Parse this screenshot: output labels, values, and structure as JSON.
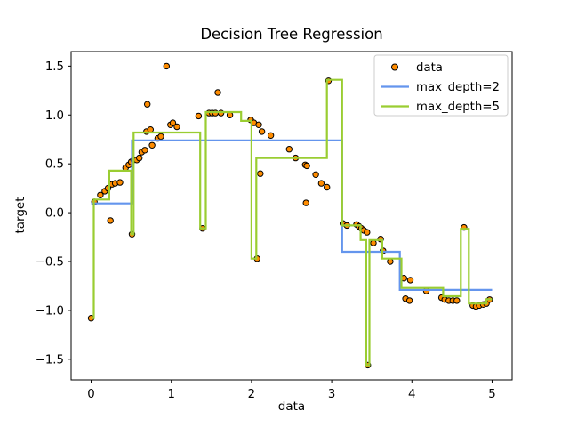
{
  "figure": {
    "background": "#ffffff",
    "axes_edge_color": "#000000"
  },
  "chart_data": {
    "type": "scatter+step",
    "title": "Decision Tree Regression",
    "xlabel": "data",
    "ylabel": "target",
    "xlim": [
      -0.25,
      5.25
    ],
    "ylim": [
      -1.711,
      1.649
    ],
    "xticks": [
      0,
      1,
      2,
      3,
      4,
      5
    ],
    "yticks": [
      -1.5,
      -1.0,
      -0.5,
      0.0,
      0.5,
      1.0,
      1.5
    ],
    "grid": false,
    "legend": {
      "position": "upper right",
      "entries": [
        {
          "label": "data",
          "type": "marker",
          "color": "#ff8c00",
          "edge": "#000000"
        },
        {
          "label": "max_depth=2",
          "type": "line",
          "color": "#6495ed"
        },
        {
          "label": "max_depth=5",
          "type": "line",
          "color": "#9acd32"
        }
      ]
    },
    "series": [
      {
        "name": "data",
        "type": "scatter",
        "color": "#ff8c00",
        "edgecolor": "#000000",
        "marker_radius": 3.2,
        "points": [
          [
            0.0,
            -1.08
          ],
          [
            0.04,
            0.11
          ],
          [
            0.115,
            0.18
          ],
          [
            0.17,
            0.22
          ],
          [
            0.21,
            0.25
          ],
          [
            0.24,
            -0.08
          ],
          [
            0.26,
            0.29
          ],
          [
            0.3,
            0.3
          ],
          [
            0.36,
            0.31
          ],
          [
            0.43,
            0.46
          ],
          [
            0.47,
            0.49
          ],
          [
            0.5,
            0.52
          ],
          [
            0.51,
            -0.22
          ],
          [
            0.53,
            0.54
          ],
          [
            0.57,
            0.54
          ],
          [
            0.6,
            0.56
          ],
          [
            0.63,
            0.62
          ],
          [
            0.67,
            0.64
          ],
          [
            0.69,
            0.83
          ],
          [
            0.7,
            1.11
          ],
          [
            0.74,
            0.85
          ],
          [
            0.76,
            0.69
          ],
          [
            0.83,
            0.76
          ],
          [
            0.87,
            0.78
          ],
          [
            0.94,
            1.5
          ],
          [
            0.99,
            0.9
          ],
          [
            1.02,
            0.92
          ],
          [
            1.07,
            0.88
          ],
          [
            1.34,
            0.99
          ],
          [
            1.39,
            -0.16
          ],
          [
            1.47,
            1.02
          ],
          [
            1.51,
            1.02
          ],
          [
            1.55,
            1.02
          ],
          [
            1.58,
            1.23
          ],
          [
            1.62,
            1.02
          ],
          [
            1.73,
            1.0
          ],
          [
            1.99,
            0.95
          ],
          [
            2.03,
            0.92
          ],
          [
            2.07,
            -0.47
          ],
          [
            2.09,
            0.9
          ],
          [
            2.11,
            0.4
          ],
          [
            2.13,
            0.83
          ],
          [
            2.24,
            0.79
          ],
          [
            2.47,
            0.65
          ],
          [
            2.55,
            0.56
          ],
          [
            2.67,
            0.49
          ],
          [
            2.69,
            0.48
          ],
          [
            2.68,
            0.1
          ],
          [
            2.8,
            0.39
          ],
          [
            2.87,
            0.3
          ],
          [
            2.94,
            0.26
          ],
          [
            2.96,
            1.35
          ],
          [
            3.14,
            -0.11
          ],
          [
            3.19,
            -0.13
          ],
          [
            3.31,
            -0.12
          ],
          [
            3.34,
            -0.14
          ],
          [
            3.37,
            -0.16
          ],
          [
            3.4,
            -0.18
          ],
          [
            3.44,
            -0.2
          ],
          [
            3.45,
            -1.56
          ],
          [
            3.52,
            -0.31
          ],
          [
            3.61,
            -0.27
          ],
          [
            3.64,
            -0.39
          ],
          [
            3.73,
            -0.5
          ],
          [
            3.9,
            -0.67
          ],
          [
            3.98,
            -0.69
          ],
          [
            3.92,
            -0.88
          ],
          [
            3.97,
            -0.9
          ],
          [
            4.18,
            -0.8
          ],
          [
            4.37,
            -0.87
          ],
          [
            4.41,
            -0.89
          ],
          [
            4.46,
            -0.9
          ],
          [
            4.51,
            -0.9
          ],
          [
            4.56,
            -0.9
          ],
          [
            4.65,
            -0.15
          ],
          [
            4.76,
            -0.95
          ],
          [
            4.8,
            -0.96
          ],
          [
            4.84,
            -0.95
          ],
          [
            4.89,
            -0.94
          ],
          [
            4.93,
            -0.93
          ],
          [
            4.97,
            -0.89
          ]
        ]
      },
      {
        "name": "max_depth=2",
        "type": "step",
        "color": "#6495ed",
        "linewidth": 2.2,
        "x_end": 5.0,
        "steps": [
          [
            0.0,
            0.095
          ],
          [
            0.51,
            0.74
          ],
          [
            3.13,
            -0.4
          ],
          [
            3.85,
            -0.79
          ]
        ]
      },
      {
        "name": "max_depth=5",
        "type": "step",
        "color": "#9acd32",
        "linewidth": 2.2,
        "x_end": 5.0,
        "steps": [
          [
            0.0,
            -1.08
          ],
          [
            0.033,
            0.135
          ],
          [
            0.226,
            0.43
          ],
          [
            0.5,
            -0.22
          ],
          [
            0.53,
            0.82
          ],
          [
            1.36,
            -0.16
          ],
          [
            1.43,
            1.03
          ],
          [
            1.87,
            0.94
          ],
          [
            2.0,
            -0.47
          ],
          [
            2.06,
            0.56
          ],
          [
            2.94,
            1.36
          ],
          [
            3.13,
            -0.13
          ],
          [
            3.36,
            -0.28
          ],
          [
            3.43,
            -1.56
          ],
          [
            3.47,
            -0.28
          ],
          [
            3.63,
            -0.47
          ],
          [
            3.87,
            -0.77
          ],
          [
            4.39,
            -0.855
          ],
          [
            4.61,
            -0.165
          ],
          [
            4.71,
            -0.93
          ],
          [
            4.93,
            -0.885
          ]
        ]
      }
    ]
  }
}
